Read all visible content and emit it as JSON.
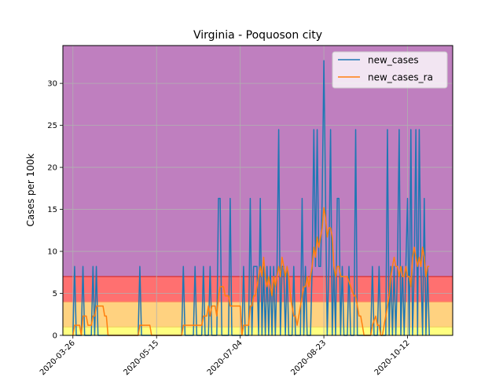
{
  "chart_data": {
    "type": "line",
    "title": "Virginia - Poquoson city",
    "xlabel": "",
    "ylabel": "Cases per 100k",
    "x_start": "2020-03-20",
    "x_end": "2020-11-08",
    "ylim": [
      0,
      34.5
    ],
    "y_ticks": [
      0,
      5,
      10,
      15,
      20,
      25,
      30
    ],
    "x_ticks": [
      "2020-03-26",
      "2020-05-15",
      "2020-07-04",
      "2020-08-23",
      "2020-10-12"
    ],
    "grid": true,
    "legend_position": "top-right",
    "bands": [
      {
        "from": 0,
        "to": 1,
        "color": "#ffff80"
      },
      {
        "from": 1,
        "to": 4,
        "color": "#ffd280"
      },
      {
        "from": 4,
        "to": 7,
        "color": "#ff7070"
      },
      {
        "from": 7,
        "to": 34.5,
        "color": "#bf7fbf"
      }
    ],
    "series": [
      {
        "name": "new_cases",
        "color": "#1f77b4",
        "points": [
          [
            "2020-03-26",
            0
          ],
          [
            "2020-03-27",
            8.2
          ],
          [
            "2020-03-28",
            0
          ],
          [
            "2020-03-31",
            0
          ],
          [
            "2020-04-01",
            8.2
          ],
          [
            "2020-04-02",
            0
          ],
          [
            "2020-04-06",
            0
          ],
          [
            "2020-04-07",
            8.2
          ],
          [
            "2020-04-08",
            0
          ],
          [
            "2020-04-09",
            8.2
          ],
          [
            "2020-04-10",
            0
          ],
          [
            "2020-05-04",
            0
          ],
          [
            "2020-05-05",
            8.2
          ],
          [
            "2020-05-06",
            0
          ],
          [
            "2020-05-30",
            0
          ],
          [
            "2020-05-31",
            8.2
          ],
          [
            "2020-06-01",
            0
          ],
          [
            "2020-06-06",
            0
          ],
          [
            "2020-06-07",
            8.2
          ],
          [
            "2020-06-08",
            0
          ],
          [
            "2020-06-11",
            0
          ],
          [
            "2020-06-12",
            8.2
          ],
          [
            "2020-06-13",
            0
          ],
          [
            "2020-06-15",
            0
          ],
          [
            "2020-06-16",
            8.2
          ],
          [
            "2020-06-17",
            0
          ],
          [
            "2020-06-20",
            0
          ],
          [
            "2020-06-21",
            16.3
          ],
          [
            "2020-06-22",
            16.3
          ],
          [
            "2020-06-23",
            0
          ],
          [
            "2020-06-27",
            0
          ],
          [
            "2020-06-28",
            16.3
          ],
          [
            "2020-06-29",
            0
          ],
          [
            "2020-07-05",
            0
          ],
          [
            "2020-07-06",
            8.2
          ],
          [
            "2020-07-07",
            0
          ],
          [
            "2020-07-09",
            0
          ],
          [
            "2020-07-10",
            16.3
          ],
          [
            "2020-07-11",
            0
          ],
          [
            "2020-07-12",
            8.2
          ],
          [
            "2020-07-13",
            8.2
          ],
          [
            "2020-07-14",
            8.2
          ],
          [
            "2020-07-15",
            0
          ],
          [
            "2020-07-16",
            16.3
          ],
          [
            "2020-07-17",
            0
          ],
          [
            "2020-07-18",
            8.2
          ],
          [
            "2020-07-19",
            0
          ],
          [
            "2020-07-20",
            8.2
          ],
          [
            "2020-07-21",
            0
          ],
          [
            "2020-07-22",
            8.2
          ],
          [
            "2020-07-23",
            0
          ],
          [
            "2020-07-24",
            8.2
          ],
          [
            "2020-07-25",
            0
          ],
          [
            "2020-07-26",
            8.2
          ],
          [
            "2020-07-27",
            24.5
          ],
          [
            "2020-07-28",
            0
          ],
          [
            "2020-07-29",
            8.2
          ],
          [
            "2020-07-30",
            8.2
          ],
          [
            "2020-07-31",
            0
          ],
          [
            "2020-08-01",
            8.2
          ],
          [
            "2020-08-02",
            0
          ],
          [
            "2020-08-04",
            0
          ],
          [
            "2020-08-05",
            8.2
          ],
          [
            "2020-08-06",
            0
          ],
          [
            "2020-08-09",
            0
          ],
          [
            "2020-08-10",
            16.3
          ],
          [
            "2020-08-11",
            0
          ],
          [
            "2020-08-12",
            8.2
          ],
          [
            "2020-08-13",
            0
          ],
          [
            "2020-08-15",
            0
          ],
          [
            "2020-08-16",
            8.2
          ],
          [
            "2020-08-17",
            24.5
          ],
          [
            "2020-08-18",
            8.2
          ],
          [
            "2020-08-19",
            24.5
          ],
          [
            "2020-08-20",
            8.2
          ],
          [
            "2020-08-21",
            8.2
          ],
          [
            "2020-08-22",
            16.3
          ],
          [
            "2020-08-23",
            32.7
          ],
          [
            "2020-08-24",
            16.3
          ],
          [
            "2020-08-25",
            0
          ],
          [
            "2020-08-26",
            8.2
          ],
          [
            "2020-08-27",
            24.5
          ],
          [
            "2020-08-28",
            0
          ],
          [
            "2020-08-29",
            8.2
          ],
          [
            "2020-08-30",
            0
          ],
          [
            "2020-08-31",
            16.3
          ],
          [
            "2020-09-01",
            16.3
          ],
          [
            "2020-09-02",
            0
          ],
          [
            "2020-09-03",
            8.2
          ],
          [
            "2020-09-04",
            0
          ],
          [
            "2020-09-06",
            0
          ],
          [
            "2020-09-07",
            8.2
          ],
          [
            "2020-09-08",
            0
          ],
          [
            "2020-09-10",
            0
          ],
          [
            "2020-09-11",
            24.5
          ],
          [
            "2020-09-12",
            0
          ],
          [
            "2020-09-20",
            0
          ],
          [
            "2020-09-21",
            8.2
          ],
          [
            "2020-09-22",
            0
          ],
          [
            "2020-09-24",
            0
          ],
          [
            "2020-09-25",
            8.2
          ],
          [
            "2020-09-26",
            0
          ],
          [
            "2020-09-29",
            0
          ],
          [
            "2020-09-30",
            24.5
          ],
          [
            "2020-10-01",
            0
          ],
          [
            "2020-10-02",
            8.2
          ],
          [
            "2020-10-03",
            0
          ],
          [
            "2020-10-04",
            8.2
          ],
          [
            "2020-10-05",
            0
          ],
          [
            "2020-10-06",
            8.2
          ],
          [
            "2020-10-07",
            24.5
          ],
          [
            "2020-10-08",
            0
          ],
          [
            "2020-10-09",
            8.2
          ],
          [
            "2020-10-10",
            0
          ],
          [
            "2020-10-11",
            8.2
          ],
          [
            "2020-10-12",
            16.3
          ],
          [
            "2020-10-13",
            0
          ],
          [
            "2020-10-14",
            24.5
          ],
          [
            "2020-10-15",
            0
          ],
          [
            "2020-10-16",
            8.2
          ],
          [
            "2020-10-17",
            24.5
          ],
          [
            "2020-10-18",
            0
          ],
          [
            "2020-10-19",
            24.5
          ],
          [
            "2020-10-20",
            8.2
          ],
          [
            "2020-10-21",
            0
          ],
          [
            "2020-10-22",
            16.3
          ],
          [
            "2020-10-23",
            0
          ],
          [
            "2020-10-24",
            8.2
          ],
          [
            "2020-10-25",
            0
          ]
        ]
      },
      {
        "name": "new_cases_ra",
        "color": "#ff7f0e",
        "points": [
          [
            "2020-03-26",
            0
          ],
          [
            "2020-03-27",
            1.2
          ],
          [
            "2020-03-30",
            1.2
          ],
          [
            "2020-03-31",
            0
          ],
          [
            "2020-04-01",
            2.3
          ],
          [
            "2020-04-03",
            2.3
          ],
          [
            "2020-04-04",
            1.2
          ],
          [
            "2020-04-06",
            1.2
          ],
          [
            "2020-04-07",
            2.3
          ],
          [
            "2020-04-08",
            2.3
          ],
          [
            "2020-04-09",
            3.5
          ],
          [
            "2020-04-13",
            3.5
          ],
          [
            "2020-04-14",
            2.3
          ],
          [
            "2020-04-15",
            2.3
          ],
          [
            "2020-04-16",
            0
          ],
          [
            "2020-05-04",
            0
          ],
          [
            "2020-05-05",
            1.2
          ],
          [
            "2020-05-11",
            1.2
          ],
          [
            "2020-05-12",
            0
          ],
          [
            "2020-05-30",
            0
          ],
          [
            "2020-05-31",
            1.2
          ],
          [
            "2020-06-06",
            1.2
          ],
          [
            "2020-06-07",
            1.2
          ],
          [
            "2020-06-11",
            1.2
          ],
          [
            "2020-06-12",
            2.3
          ],
          [
            "2020-06-14",
            2.3
          ],
          [
            "2020-06-15",
            3.5
          ],
          [
            "2020-06-16",
            2.3
          ],
          [
            "2020-06-17",
            3.5
          ],
          [
            "2020-06-19",
            3.5
          ],
          [
            "2020-06-20",
            2.3
          ],
          [
            "2020-06-21",
            4.7
          ],
          [
            "2020-06-22",
            5.8
          ],
          [
            "2020-06-24",
            5.8
          ],
          [
            "2020-06-25",
            4.7
          ],
          [
            "2020-06-27",
            4.7
          ],
          [
            "2020-06-28",
            3.5
          ],
          [
            "2020-06-29",
            3.5
          ],
          [
            "2020-07-04",
            3.5
          ],
          [
            "2020-07-05",
            0
          ],
          [
            "2020-07-06",
            1.2
          ],
          [
            "2020-07-09",
            1.2
          ],
          [
            "2020-07-10",
            3.5
          ],
          [
            "2020-07-11",
            3.5
          ],
          [
            "2020-07-12",
            4.7
          ],
          [
            "2020-07-13",
            4.7
          ],
          [
            "2020-07-14",
            5.8
          ],
          [
            "2020-07-15",
            7.0
          ],
          [
            "2020-07-16",
            8.2
          ],
          [
            "2020-07-17",
            7.0
          ],
          [
            "2020-07-18",
            9.3
          ],
          [
            "2020-07-19",
            7.0
          ],
          [
            "2020-07-20",
            5.8
          ],
          [
            "2020-07-21",
            7.0
          ],
          [
            "2020-07-22",
            5.8
          ],
          [
            "2020-07-23",
            4.7
          ],
          [
            "2020-07-24",
            7.0
          ],
          [
            "2020-07-25",
            5.8
          ],
          [
            "2020-07-26",
            7.0
          ],
          [
            "2020-07-27",
            8.2
          ],
          [
            "2020-07-28",
            7.0
          ],
          [
            "2020-07-29",
            9.3
          ],
          [
            "2020-07-30",
            8.2
          ],
          [
            "2020-07-31",
            7.0
          ],
          [
            "2020-08-01",
            8.2
          ],
          [
            "2020-08-02",
            7.0
          ],
          [
            "2020-08-03",
            4.7
          ],
          [
            "2020-08-04",
            3.5
          ],
          [
            "2020-08-05",
            2.3
          ],
          [
            "2020-08-06",
            2.3
          ],
          [
            "2020-08-07",
            1.2
          ],
          [
            "2020-08-08",
            2.3
          ],
          [
            "2020-08-09",
            3.5
          ],
          [
            "2020-08-10",
            4.7
          ],
          [
            "2020-08-11",
            5.8
          ],
          [
            "2020-08-12",
            5.8
          ],
          [
            "2020-08-13",
            7.0
          ],
          [
            "2020-08-14",
            5.8
          ],
          [
            "2020-08-15",
            7.0
          ],
          [
            "2020-08-16",
            8.2
          ],
          [
            "2020-08-17",
            10.5
          ],
          [
            "2020-08-18",
            9.3
          ],
          [
            "2020-08-19",
            11.7
          ],
          [
            "2020-08-20",
            10.5
          ],
          [
            "2020-08-21",
            11.7
          ],
          [
            "2020-08-22",
            12.8
          ],
          [
            "2020-08-23",
            15.2
          ],
          [
            "2020-08-24",
            14.0
          ],
          [
            "2020-08-25",
            11.7
          ],
          [
            "2020-08-26",
            12.8
          ],
          [
            "2020-08-27",
            12.8
          ],
          [
            "2020-08-28",
            11.7
          ],
          [
            "2020-08-29",
            8.2
          ],
          [
            "2020-08-30",
            7.0
          ],
          [
            "2020-08-31",
            8.2
          ],
          [
            "2020-09-01",
            8.2
          ],
          [
            "2020-09-02",
            7.0
          ],
          [
            "2020-09-05",
            7.0
          ],
          [
            "2020-09-06",
            7.0
          ],
          [
            "2020-09-08",
            5.8
          ],
          [
            "2020-09-10",
            4.7
          ],
          [
            "2020-09-11",
            4.7
          ],
          [
            "2020-09-12",
            3.5
          ],
          [
            "2020-09-13",
            2.3
          ],
          [
            "2020-09-14",
            2.3
          ],
          [
            "2020-09-15",
            1.2
          ],
          [
            "2020-09-16",
            0
          ],
          [
            "2020-09-20",
            0
          ],
          [
            "2020-09-21",
            1.2
          ],
          [
            "2020-09-23",
            2.3
          ],
          [
            "2020-09-24",
            1.2
          ],
          [
            "2020-09-25",
            1.2
          ],
          [
            "2020-09-26",
            0
          ],
          [
            "2020-09-27",
            0
          ],
          [
            "2020-09-28",
            1.2
          ],
          [
            "2020-09-29",
            2.3
          ],
          [
            "2020-09-30",
            3.5
          ],
          [
            "2020-10-01",
            4.7
          ],
          [
            "2020-10-02",
            7.0
          ],
          [
            "2020-10-03",
            8.2
          ],
          [
            "2020-10-04",
            9.3
          ],
          [
            "2020-10-05",
            8.2
          ],
          [
            "2020-10-06",
            8.2
          ],
          [
            "2020-10-07",
            7.0
          ],
          [
            "2020-10-08",
            8.2
          ],
          [
            "2020-10-09",
            7.0
          ],
          [
            "2020-10-10",
            7.0
          ],
          [
            "2020-10-11",
            8.2
          ],
          [
            "2020-10-12",
            7.0
          ],
          [
            "2020-10-13",
            7.0
          ],
          [
            "2020-10-14",
            5.8
          ],
          [
            "2020-10-15",
            9.3
          ],
          [
            "2020-10-16",
            10.5
          ],
          [
            "2020-10-17",
            9.3
          ],
          [
            "2020-10-18",
            8.2
          ],
          [
            "2020-10-19",
            9.3
          ],
          [
            "2020-10-20",
            8.2
          ],
          [
            "2020-10-21",
            10.5
          ],
          [
            "2020-10-22",
            9.3
          ],
          [
            "2020-10-23",
            7.0
          ],
          [
            "2020-10-24",
            8.2
          ],
          [
            "2020-10-25",
            8.2
          ]
        ]
      }
    ]
  }
}
